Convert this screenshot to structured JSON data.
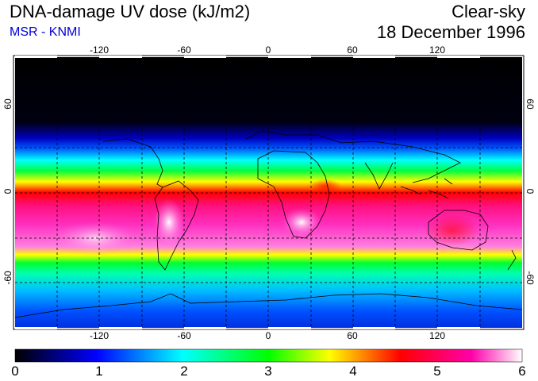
{
  "header": {
    "title": "DNA-damage UV dose (kJ/m2)",
    "source": "MSR - KNMI",
    "condition": "Clear-sky",
    "date": "18 December 1996"
  },
  "map": {
    "longitude_ticks": [
      "-120",
      "-60",
      "0",
      "60",
      "120"
    ],
    "latitude_ticks_left": [
      "60",
      "0",
      "-60"
    ],
    "latitude_ticks_right": [
      "60",
      "0",
      "-60"
    ],
    "longitude_range": [
      -180,
      180
    ],
    "latitude_range": [
      -90,
      90
    ],
    "grid": "dashed, every 30 degrees"
  },
  "colorbar": {
    "min": 0,
    "max": 6,
    "tick_labels": [
      "0",
      "1",
      "2",
      "3",
      "4",
      "5",
      "6"
    ],
    "colors": [
      "#000000",
      "#0000ff",
      "#00ffff",
      "#00ff00",
      "#ffff00",
      "#ff0000",
      "#ff00aa",
      "#ffffff"
    ]
  }
}
